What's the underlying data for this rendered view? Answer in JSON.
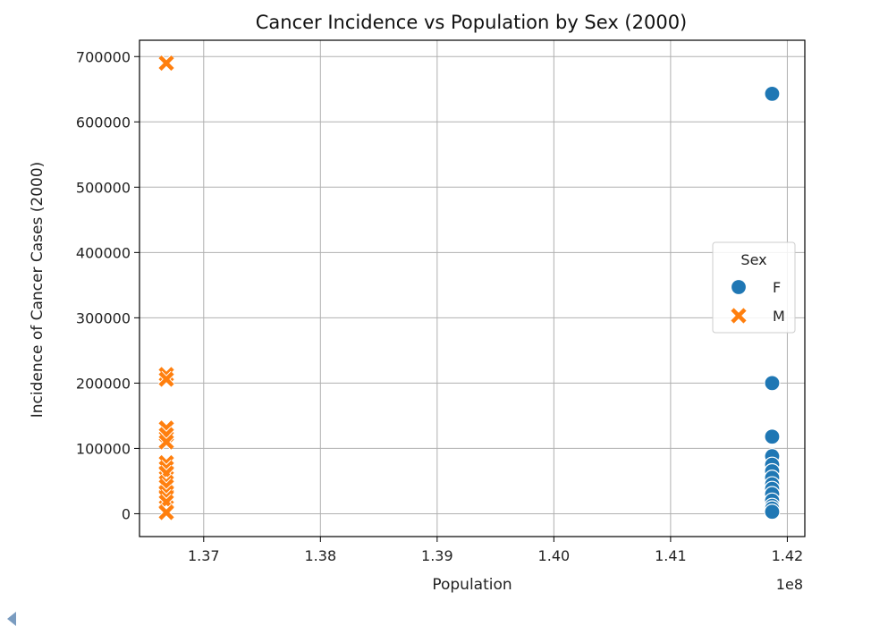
{
  "chart_data": {
    "type": "scatter",
    "title": "Cancer Incidence vs Population by Sex (2000)",
    "xlabel": "Population",
    "ylabel": "Incidence of Cancer Cases (2000)",
    "x_offset_label": "1e8",
    "xlim": [
      1.3645,
      1.4215
    ],
    "ylim": [
      -35000,
      725000
    ],
    "x_ticks": [
      1.37,
      1.38,
      1.39,
      1.4,
      1.41,
      1.42
    ],
    "x_tick_labels": [
      "1.37",
      "1.38",
      "1.39",
      "1.40",
      "1.41",
      "1.42"
    ],
    "y_ticks": [
      0,
      100000,
      200000,
      300000,
      400000,
      500000,
      600000,
      700000
    ],
    "y_tick_labels": [
      "0",
      "100000",
      "200000",
      "300000",
      "400000",
      "500000",
      "600000",
      "700000"
    ],
    "grid": true,
    "legend": {
      "title": "Sex",
      "placement": "center-right"
    },
    "series": [
      {
        "name": "F",
        "marker": "circle",
        "color": "#1f77b4",
        "x": [
          1.4187,
          1.4187,
          1.4187,
          1.4187,
          1.4187,
          1.4187,
          1.4187,
          1.4187,
          1.4187,
          1.4187,
          1.4187,
          1.4187,
          1.4187,
          1.4187
        ],
        "y": [
          643000,
          200000,
          118000,
          88000,
          75000,
          65000,
          55000,
          45000,
          38000,
          30000,
          20000,
          12000,
          8000,
          3000
        ]
      },
      {
        "name": "M",
        "marker": "x",
        "color": "#ff7f0e",
        "x": [
          1.3668,
          1.3668,
          1.3668,
          1.3668,
          1.3668,
          1.3668,
          1.3668,
          1.3668,
          1.3668,
          1.3668,
          1.3668,
          1.3668,
          1.3668,
          1.3668,
          1.3668
        ],
        "y": [
          690000,
          213000,
          206000,
          131000,
          121000,
          110000,
          78000,
          70000,
          62000,
          48000,
          42000,
          32000,
          25000,
          18000,
          2000
        ]
      }
    ]
  }
}
